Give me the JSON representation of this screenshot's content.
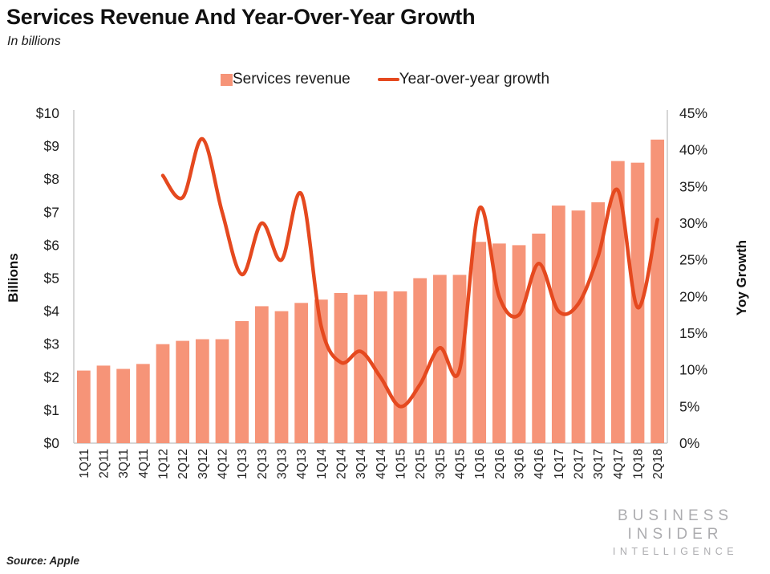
{
  "page": {
    "title": "Services Revenue And Year-Over-Year Growth",
    "subtitle": "In billions",
    "source": "Source: Apple",
    "logo": {
      "line1": "BUSINESS",
      "line2": "INSIDER",
      "line3": "INTELLIGENCE"
    }
  },
  "legend": [
    {
      "label": "Services revenue",
      "swatch": "square",
      "color": "#F69478"
    },
    {
      "label": "Year-over-year growth",
      "swatch": "line",
      "color": "#E5491F"
    }
  ],
  "colors": {
    "bar": "#F69478",
    "line": "#E5491F",
    "axis_line": "#C9C9C9",
    "tick_text": "#1f1f1f",
    "logo_gray": "#ACACAF"
  },
  "chart_data": {
    "type": "bar",
    "title": "Services Revenue And Year-Over-Year Growth",
    "subtitle": "In billions",
    "grid": false,
    "legend_position": "top-center",
    "categories": [
      "1Q11",
      "2Q11",
      "3Q11",
      "4Q11",
      "1Q12",
      "2Q12",
      "3Q12",
      "4Q12",
      "1Q13",
      "2Q13",
      "3Q13",
      "4Q13",
      "1Q14",
      "2Q14",
      "3Q14",
      "4Q14",
      "1Q15",
      "2Q15",
      "3Q15",
      "4Q15",
      "1Q16",
      "2Q16",
      "3Q16",
      "4Q16",
      "1Q17",
      "2Q17",
      "3Q17",
      "4Q17",
      "1Q18",
      "2Q18"
    ],
    "series": [
      {
        "name": "Services revenue",
        "type": "bar",
        "axis": "left",
        "unit": "USD billions",
        "values": [
          2.2,
          2.35,
          2.25,
          2.4,
          3.0,
          3.1,
          3.15,
          3.15,
          3.7,
          4.15,
          4.0,
          4.25,
          4.35,
          4.55,
          4.5,
          4.6,
          4.6,
          5.0,
          5.1,
          5.1,
          6.1,
          6.05,
          6.0,
          6.35,
          7.2,
          7.05,
          7.3,
          8.55,
          8.5,
          9.2
        ]
      },
      {
        "name": "Year-over-year growth",
        "type": "line",
        "axis": "right",
        "unit": "percent",
        "start_index": 4,
        "values": [
          36.5,
          33.5,
          41.5,
          31.5,
          23,
          30,
          25,
          34,
          16,
          11,
          12.5,
          9,
          5,
          8,
          13,
          10,
          32,
          20,
          17.5,
          24.5,
          18,
          19,
          25.5,
          34.5,
          18.5,
          30.5
        ]
      }
    ],
    "left_axis": {
      "title": "Billions",
      "min": 0,
      "max": 10,
      "step": 1,
      "tick_labels": [
        "$0",
        "$1",
        "$2",
        "$3",
        "$4",
        "$5",
        "$6",
        "$7",
        "$8",
        "$9",
        "$10"
      ]
    },
    "right_axis": {
      "title": "Yoy Growth",
      "min": 0,
      "max": 45,
      "step": 5,
      "tick_labels": [
        "0%",
        "5%",
        "10%",
        "15%",
        "20%",
        "25%",
        "30%",
        "35%",
        "40%",
        "45%"
      ]
    }
  }
}
